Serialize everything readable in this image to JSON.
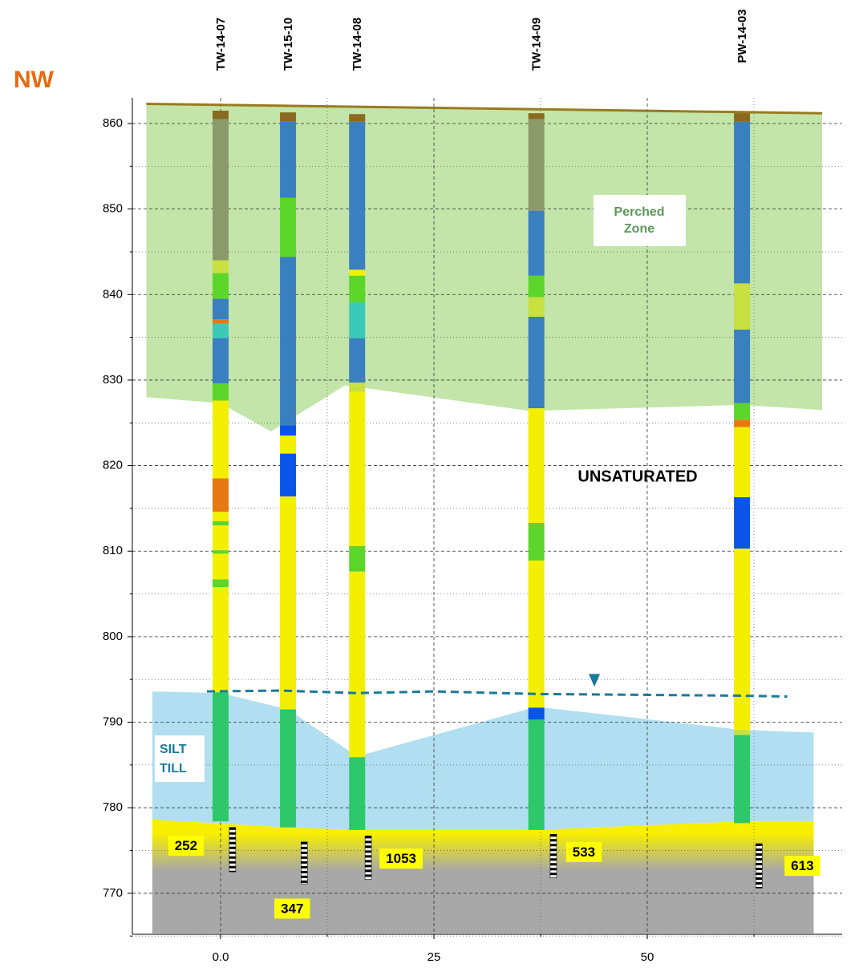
{
  "chart_data": {
    "type": "cross-section",
    "direction_label": "NW",
    "xlim": [
      -10.34,
      72.84
    ],
    "ylim": [
      765.2,
      863.0
    ],
    "xticks": [
      {
        "value": 0,
        "label": "0.0"
      },
      25,
      50
    ],
    "xminor": [
      12.5,
      37.5,
      62.5
    ],
    "yticks": [
      770,
      780,
      790,
      800,
      810,
      820,
      830,
      840,
      850,
      860
    ],
    "yminor": [
      765,
      775,
      785,
      795,
      805,
      815,
      825,
      835,
      845,
      855
    ],
    "grid": true,
    "ground": {
      "color": "#9a7a20",
      "x": [
        -8.7,
        70.5
      ],
      "y": [
        862.3,
        861.2
      ]
    },
    "perched_zone": {
      "label": [
        "Perched",
        "Zone"
      ],
      "color": "#b8e09a",
      "x": [
        -8.7,
        70.5,
        70.5,
        61.1,
        36.2,
        14.6,
        5.9,
        0,
        -8.7
      ],
      "y": [
        862.3,
        861.2,
        826.5,
        827.1,
        826.4,
        829.4,
        824.0,
        827.3,
        828.0
      ]
    },
    "unsaturated_label": "UNSATURATED",
    "silt_till": {
      "label": [
        "SILT",
        "TILL"
      ],
      "color": "#a8dcf0",
      "x": [
        -8.0,
        0,
        7.9,
        16,
        37,
        61.1,
        69.5,
        69.5,
        61.1,
        37,
        16,
        7.9,
        -8.0
      ],
      "y": [
        793.6,
        793.4,
        791.5,
        786.0,
        791.8,
        789.1,
        788.8,
        778.4,
        778.4,
        777.4,
        777.4,
        777.7,
        778.6
      ]
    },
    "bedrock": {
      "colors": [
        "#f8f000",
        "#a8a8a8"
      ],
      "bottom": 765.3,
      "x": [
        -8.0,
        7.9,
        16,
        37,
        61.1,
        69.5
      ],
      "y": [
        778.6,
        777.7,
        777.4,
        777.4,
        778.4,
        778.4
      ]
    },
    "water_table": {
      "color": "#1a7a9a",
      "x": [
        -1.6,
        7,
        16,
        25,
        37,
        61,
        66.4
      ],
      "y": [
        793.6,
        793.7,
        793.4,
        793.6,
        793.3,
        793.1,
        793.0
      ],
      "marker": [
        43.8,
        794.8
      ]
    },
    "wells": [
      {
        "name": "TW-14-07",
        "x": 0,
        "layers": [
          [
            861.5,
            860.5,
            "#8a6a20"
          ],
          [
            860.5,
            844.0,
            "#8a9a6a"
          ],
          [
            844.0,
            842.5,
            "#c8e040"
          ],
          [
            842.5,
            839.5,
            "#5cd62a"
          ],
          [
            839.5,
            837.1,
            "#3a80c0"
          ],
          [
            837.1,
            836.6,
            "#e87810"
          ],
          [
            836.6,
            834.9,
            "#3ccab8"
          ],
          [
            834.9,
            829.6,
            "#3a80c0"
          ],
          [
            829.6,
            827.6,
            "#5cd62a"
          ],
          [
            827.6,
            818.5,
            "#f2f000"
          ],
          [
            818.5,
            814.6,
            "#e87810"
          ],
          [
            814.6,
            813.5,
            "#f2f000"
          ],
          [
            813.5,
            813.0,
            "#5cd62a"
          ],
          [
            813.0,
            810.1,
            "#f2f000"
          ],
          [
            810.1,
            809.7,
            "#5cd62a"
          ],
          [
            809.7,
            806.7,
            "#f2f000"
          ],
          [
            806.7,
            805.8,
            "#5cd62a"
          ],
          [
            805.8,
            793.5,
            "#f2f000"
          ],
          [
            793.5,
            778.4,
            "#2ec86a"
          ]
        ]
      },
      {
        "name": "TW-15-10",
        "x": 7.9,
        "layers": [
          [
            861.3,
            860.2,
            "#8a6a20"
          ],
          [
            860.2,
            851.3,
            "#3a80c0"
          ],
          [
            851.3,
            844.4,
            "#5cd62a"
          ],
          [
            844.4,
            824.7,
            "#3a80c0"
          ],
          [
            824.7,
            823.5,
            "#0a55e8"
          ],
          [
            823.5,
            821.4,
            "#f2f000"
          ],
          [
            821.4,
            816.4,
            "#0a55e8"
          ],
          [
            816.4,
            791.5,
            "#f2f000"
          ],
          [
            791.5,
            777.7,
            "#2ec86a"
          ]
        ]
      },
      {
        "name": "TW-14-08",
        "x": 16,
        "layers": [
          [
            861.1,
            860.2,
            "#8a6a20"
          ],
          [
            860.2,
            842.9,
            "#3a80c0"
          ],
          [
            842.9,
            842.2,
            "#f2f000"
          ],
          [
            842.2,
            839.1,
            "#5cd62a"
          ],
          [
            839.1,
            834.9,
            "#3ccab8"
          ],
          [
            834.9,
            829.7,
            "#3a80c0"
          ],
          [
            829.7,
            828.6,
            "#c8e040"
          ],
          [
            828.6,
            810.6,
            "#f2f000"
          ],
          [
            810.6,
            807.6,
            "#5cd62a"
          ],
          [
            807.6,
            785.9,
            "#f2f000"
          ],
          [
            785.9,
            777.4,
            "#2ec86a"
          ]
        ]
      },
      {
        "name": "TW-14-09",
        "x": 37,
        "layers": [
          [
            861.2,
            860.5,
            "#8a6a20"
          ],
          [
            860.5,
            849.8,
            "#8a9a6a"
          ],
          [
            849.8,
            842.2,
            "#3a80c0"
          ],
          [
            842.2,
            839.7,
            "#5cd62a"
          ],
          [
            839.7,
            837.4,
            "#c8e040"
          ],
          [
            837.4,
            826.7,
            "#3a80c0"
          ],
          [
            826.7,
            813.3,
            "#f2f000"
          ],
          [
            813.3,
            808.9,
            "#5cd62a"
          ],
          [
            808.9,
            791.7,
            "#f2f000"
          ],
          [
            791.7,
            790.3,
            "#0a55e8"
          ],
          [
            790.3,
            777.4,
            "#2ec86a"
          ]
        ]
      },
      {
        "name": "PW-14-03",
        "x": 61.1,
        "layers": [
          [
            861.2,
            860.2,
            "#8a6a20"
          ],
          [
            860.2,
            841.3,
            "#3a80c0"
          ],
          [
            841.3,
            835.9,
            "#c8e040"
          ],
          [
            835.9,
            827.3,
            "#3a80c0"
          ],
          [
            827.3,
            825.3,
            "#5cd62a"
          ],
          [
            825.3,
            824.5,
            "#e87810"
          ],
          [
            824.5,
            816.3,
            "#f2f000"
          ],
          [
            816.3,
            810.3,
            "#0a55e8"
          ],
          [
            810.3,
            789.1,
            "#f2f000"
          ],
          [
            789.1,
            788.5,
            "#c8e040"
          ],
          [
            788.5,
            778.2,
            "#2ec86a"
          ]
        ]
      }
    ],
    "screens": [
      {
        "label": 252,
        "x": 1.4,
        "top": 777.7,
        "bottom": 772.5
      },
      {
        "label": 347,
        "x": 9.8,
        "top": 776.0,
        "bottom": 771.1
      },
      {
        "label": 1053,
        "x": 17.3,
        "top": 776.7,
        "bottom": 771.6
      },
      {
        "label": 533,
        "x": 39.0,
        "top": 776.9,
        "bottom": 771.8
      },
      {
        "label": 613,
        "x": 63.1,
        "top": 775.8,
        "bottom": 770.6
      }
    ]
  }
}
